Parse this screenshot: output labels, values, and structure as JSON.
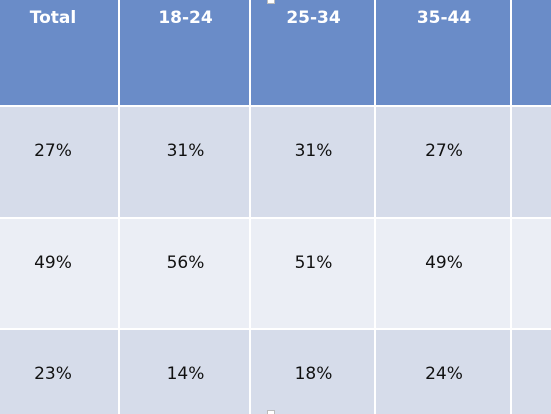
{
  "table": {
    "header": [
      "Total",
      "18-24",
      "25-34",
      "35-44"
    ],
    "rows": [
      [
        "27%",
        "31%",
        "31%",
        "27%"
      ],
      [
        "49%",
        "56%",
        "51%",
        "49%"
      ],
      [
        "23%",
        "14%",
        "18%",
        "24%"
      ]
    ]
  }
}
